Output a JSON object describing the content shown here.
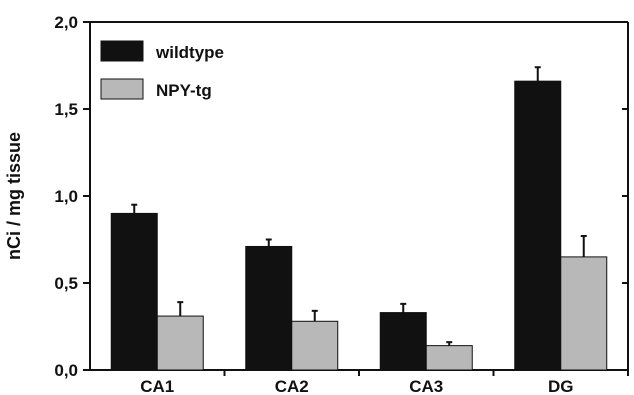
{
  "chart_data": {
    "type": "bar",
    "title": "",
    "xlabel": "",
    "ylabel": "nCi / mg tissue",
    "categories": [
      "CA1",
      "CA2",
      "CA3",
      "DG"
    ],
    "series": [
      {
        "name": "wildtype",
        "color": "#111111",
        "values": [
          0.9,
          0.71,
          0.33,
          1.66
        ],
        "errors": [
          0.05,
          0.04,
          0.05,
          0.08
        ]
      },
      {
        "name": "NPY-tg",
        "color": "#b8b8b8",
        "values": [
          0.31,
          0.28,
          0.14,
          0.65
        ],
        "errors": [
          0.08,
          0.06,
          0.02,
          0.12
        ]
      }
    ],
    "ylim": [
      0,
      2.0
    ],
    "yticks": [
      0.0,
      0.5,
      1.0,
      1.5,
      2.0
    ],
    "ytick_labels": [
      "0,0",
      "0,5",
      "1,0",
      "1,5",
      "2,0"
    ],
    "grid": false,
    "legend_position": "top-left"
  }
}
